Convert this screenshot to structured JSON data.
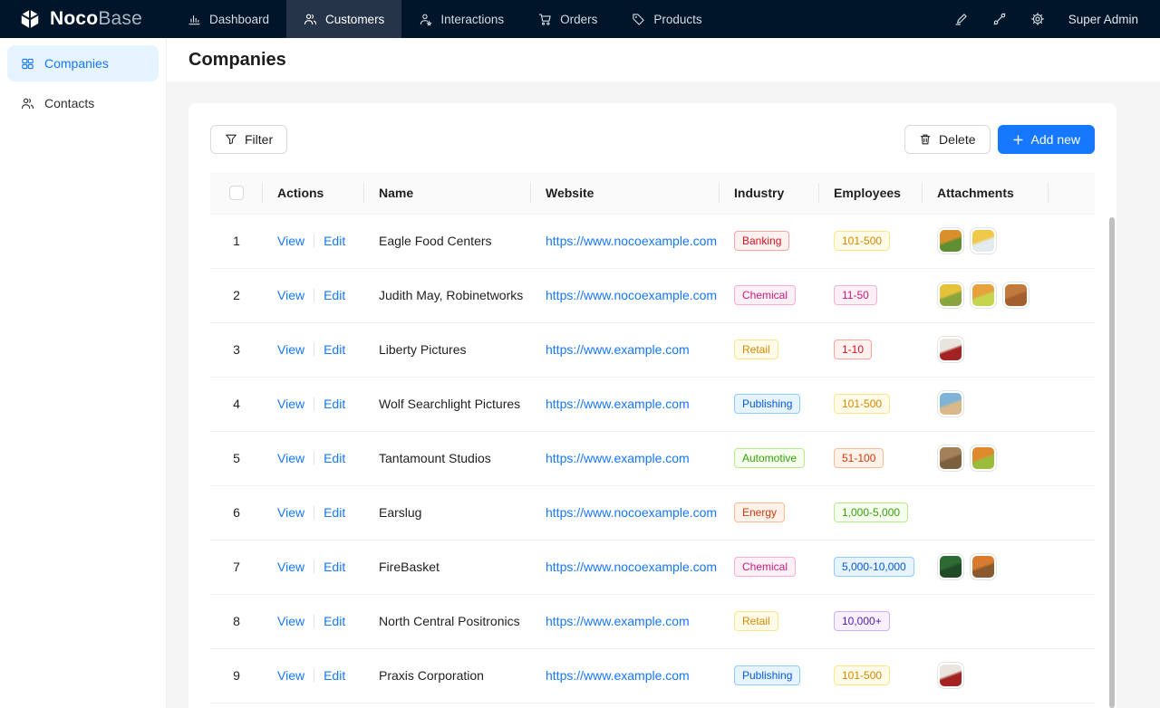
{
  "navbar": {
    "logo": {
      "bold": "Noco",
      "light": "Base"
    },
    "items": [
      {
        "label": "Dashboard",
        "icon": "bar-chart-icon",
        "active": false
      },
      {
        "label": "Customers",
        "icon": "team-icon",
        "active": true
      },
      {
        "label": "Interactions",
        "icon": "user-icon",
        "active": false
      },
      {
        "label": "Orders",
        "icon": "cart-icon",
        "active": false
      },
      {
        "label": "Products",
        "icon": "tag-icon",
        "active": false
      }
    ],
    "right_icons": [
      "highlighter-icon",
      "paintbrush-icon",
      "gear-icon"
    ],
    "user": "Super Admin"
  },
  "sidebar": {
    "items": [
      {
        "label": "Companies",
        "icon": "grid-icon",
        "active": true
      },
      {
        "label": "Contacts",
        "icon": "contacts-icon",
        "active": false
      }
    ]
  },
  "page": {
    "title": "Companies"
  },
  "toolbar": {
    "filter": "Filter",
    "delete": "Delete",
    "add_new": "Add new"
  },
  "table": {
    "columns": [
      "Actions",
      "Name",
      "Website",
      "Industry",
      "Employees",
      "Attachments"
    ],
    "action_labels": [
      "View",
      "Edit"
    ],
    "rows": [
      {
        "index": 1,
        "name": "Eagle Food Centers",
        "website": "https://www.nocoexample.com",
        "industry": {
          "label": "Banking",
          "color": "red"
        },
        "employees": {
          "label": "101-500",
          "color": "gold"
        },
        "attachments": [
          [
            "#d98f2b",
            "#5f8f33"
          ],
          [
            "#f0c948",
            "#e4ebef"
          ]
        ]
      },
      {
        "index": 2,
        "name": "Judith May, Robinetworks",
        "website": "https://www.nocoexample.com",
        "industry": {
          "label": "Chemical",
          "color": "magenta"
        },
        "employees": {
          "label": "11-50",
          "color": "magenta"
        },
        "attachments": [
          [
            "#e5c23a",
            "#8aa53f"
          ],
          [
            "#e8a13c",
            "#c3d64e"
          ],
          [
            "#c27a3c",
            "#a35f2e"
          ]
        ]
      },
      {
        "index": 3,
        "name": "Liberty Pictures",
        "website": "https://www.example.com",
        "industry": {
          "label": "Retail",
          "color": "gold"
        },
        "employees": {
          "label": "1-10",
          "color": "red"
        },
        "attachments": [
          [
            "#e9e4dd",
            "#a32222"
          ]
        ]
      },
      {
        "index": 4,
        "name": "Wolf Searchlight Pictures",
        "website": "https://www.example.com",
        "industry": {
          "label": "Publishing",
          "color": "blue"
        },
        "employees": {
          "label": "101-500",
          "color": "gold"
        },
        "attachments": [
          [
            "#7fb3d8",
            "#d9b98a"
          ]
        ]
      },
      {
        "index": 5,
        "name": "Tantamount Studios",
        "website": "https://www.example.com",
        "industry": {
          "label": "Automotive",
          "color": "green"
        },
        "employees": {
          "label": "51-100",
          "color": "volcano"
        },
        "attachments": [
          [
            "#a3805a",
            "#7c5f3e"
          ],
          [
            "#e08a2e",
            "#9bbb3c"
          ]
        ]
      },
      {
        "index": 6,
        "name": "Earslug",
        "website": "https://www.nocoexample.com",
        "industry": {
          "label": "Energy",
          "color": "volcano"
        },
        "employees": {
          "label": "1,000-5,000",
          "color": "green"
        },
        "attachments": []
      },
      {
        "index": 7,
        "name": "FireBasket",
        "website": "https://www.nocoexample.com",
        "industry": {
          "label": "Chemical",
          "color": "magenta"
        },
        "employees": {
          "label": "5,000-10,000",
          "color": "blue"
        },
        "attachments": [
          [
            "#2e6b34",
            "#1f4a26"
          ],
          [
            "#d97b2e",
            "#8a5a2e"
          ]
        ]
      },
      {
        "index": 8,
        "name": "North Central Positronics",
        "website": "https://www.example.com",
        "industry": {
          "label": "Retail",
          "color": "gold"
        },
        "employees": {
          "label": "10,000+",
          "color": "purple"
        },
        "attachments": []
      },
      {
        "index": 9,
        "name": "Praxis Corporation",
        "website": "https://www.example.com",
        "industry": {
          "label": "Publishing",
          "color": "blue"
        },
        "employees": {
          "label": "101-500",
          "color": "gold"
        },
        "attachments": [
          [
            "#e9e4dd",
            "#a32222"
          ]
        ]
      }
    ]
  },
  "tag_colors": {
    "red": {
      "bg": "#fff1f0",
      "border": "#ffa39e",
      "text": "#cf1322"
    },
    "magenta": {
      "bg": "#fff0f6",
      "border": "#ffadd2",
      "text": "#c41d7f"
    },
    "gold": {
      "bg": "#fffbe6",
      "border": "#ffe58f",
      "text": "#d48806"
    },
    "blue": {
      "bg": "#e6f4ff",
      "border": "#91caff",
      "text": "#0958d9"
    },
    "green": {
      "bg": "#f6ffed",
      "border": "#b7eb8f",
      "text": "#389e0d"
    },
    "volcano": {
      "bg": "#fff2e8",
      "border": "#ffbb96",
      "text": "#d4380d"
    },
    "purple": {
      "bg": "#f9f0ff",
      "border": "#d3adf7",
      "text": "#531dab"
    }
  },
  "accent_color": "#1677ff",
  "navbar_color": "#001529"
}
